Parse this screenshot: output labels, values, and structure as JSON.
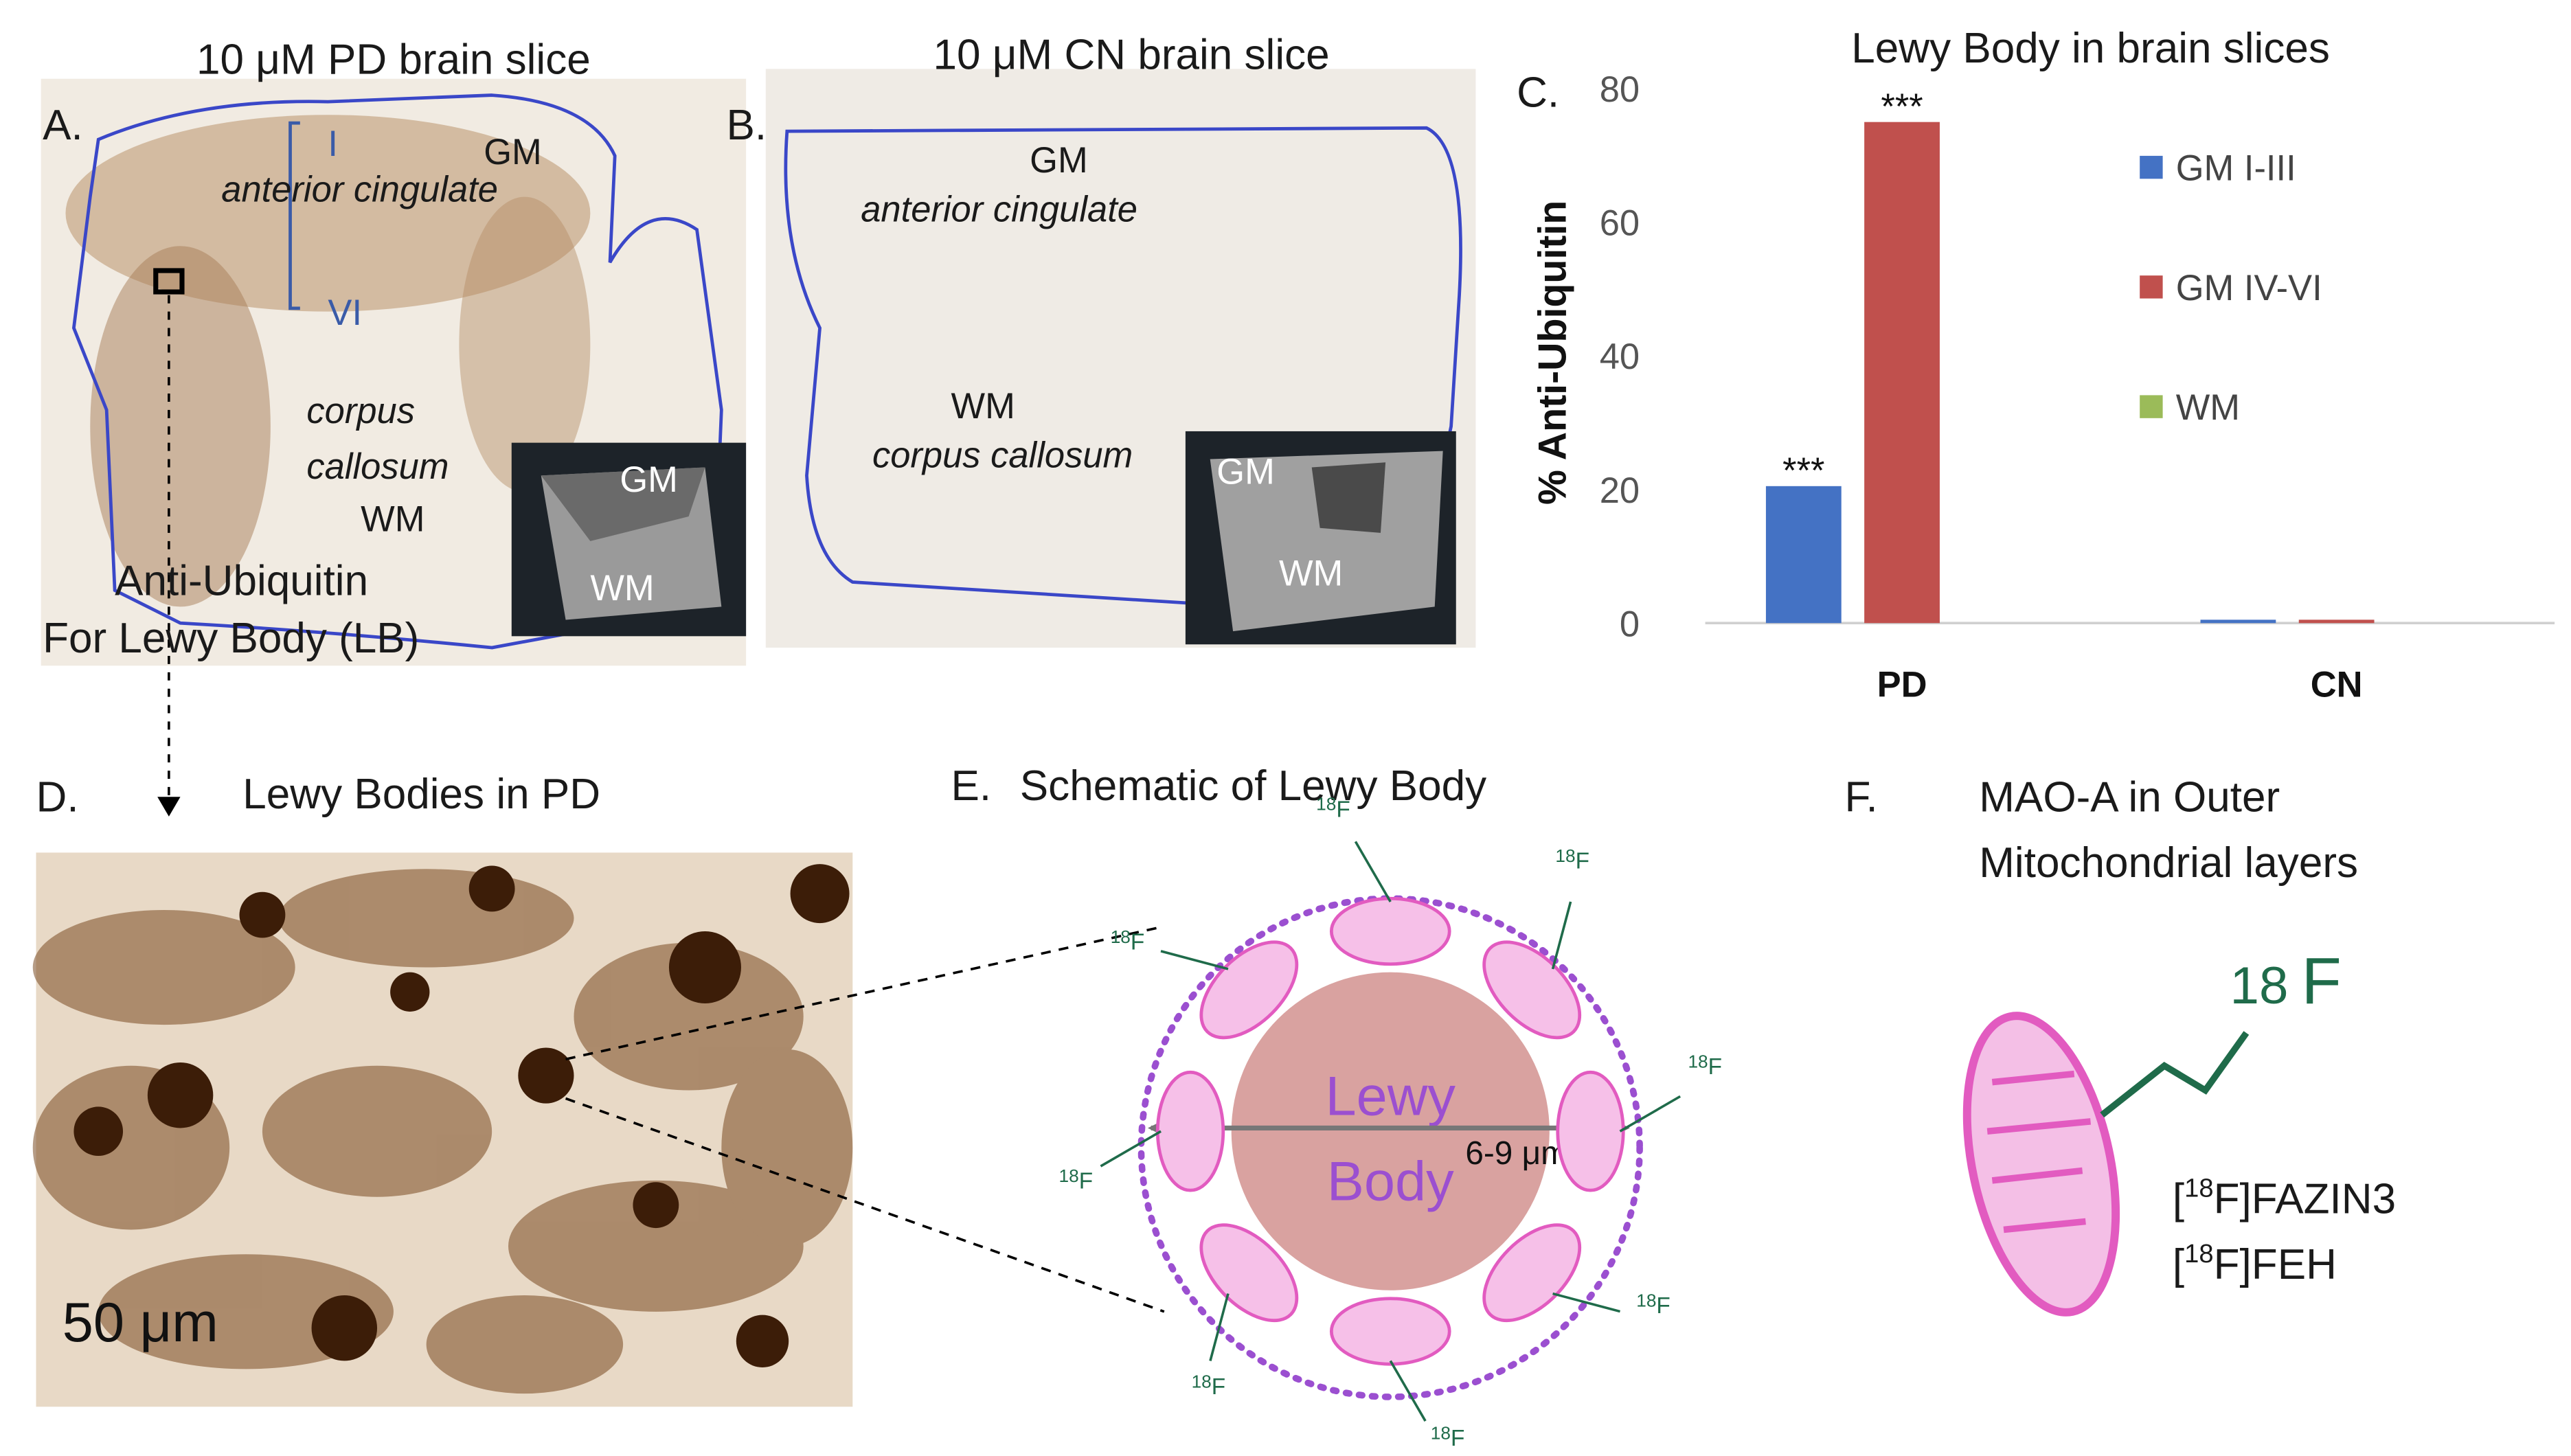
{
  "panels": {
    "a": {
      "letter": "A.",
      "title": "10 μM PD brain slice",
      "layer_top": "I",
      "layer_bottom": "VI",
      "gm": "GM",
      "region": "anterior cingulate",
      "wm_line1": "corpus",
      "wm_line2": "callosum",
      "wm": "WM",
      "inset_gm": "GM",
      "inset_wm": "WM",
      "stain_line1": "Anti-Ubiquitin",
      "stain_line2": "For Lewy Body (LB)"
    },
    "b": {
      "letter": "B.",
      "title": "10 μM CN brain slice",
      "gm": "GM",
      "region": "anterior cingulate",
      "wm": "WM",
      "wm_region": "corpus callosum",
      "inset_gm": "GM",
      "inset_wm": "WM"
    },
    "c": {
      "letter": "C."
    },
    "d": {
      "letter": "D.",
      "title": "Lewy Bodies in PD",
      "scale_bar": "50 μm"
    },
    "e": {
      "letter": "E.",
      "title": "Schematic of Lewy Body",
      "body_line1": "Lewy",
      "body_line2": "Body",
      "size": "6-9 μm",
      "isotope_mass": "18",
      "isotope_element": "F"
    },
    "f": {
      "letter": "F.",
      "title_line1": "MAO-A in Outer",
      "title_line2": "Mitochondrial layers",
      "isotope_mass": "18",
      "isotope_element": "F",
      "tracers": [
        {
          "open": "[",
          "mass": "18",
          "rest": "F]FAZIN3"
        },
        {
          "open": "[",
          "mass": "18",
          "rest": "F]FEH"
        }
      ]
    }
  },
  "chart_data": {
    "type": "bar",
    "title": "Lewy Body in brain slices",
    "y_label": "% Anti-Ubiquitin",
    "categories": [
      "PD",
      "CN"
    ],
    "series": [
      {
        "name": "GM I-III",
        "color": "#4472c4",
        "values": [
          20.5,
          0.5
        ],
        "significance": [
          "***",
          null
        ]
      },
      {
        "name": "GM IV-VI",
        "color": "#c0504d",
        "values": [
          75,
          0.5
        ],
        "significance": [
          "***",
          null
        ]
      },
      {
        "name": "WM",
        "color": "#9bbb59",
        "values": [
          0,
          0
        ],
        "significance": [
          null,
          null
        ]
      }
    ],
    "ylim": [
      0,
      80
    ],
    "yticks": [
      0,
      20,
      40,
      60,
      80
    ],
    "grid": false,
    "legend": "right"
  }
}
